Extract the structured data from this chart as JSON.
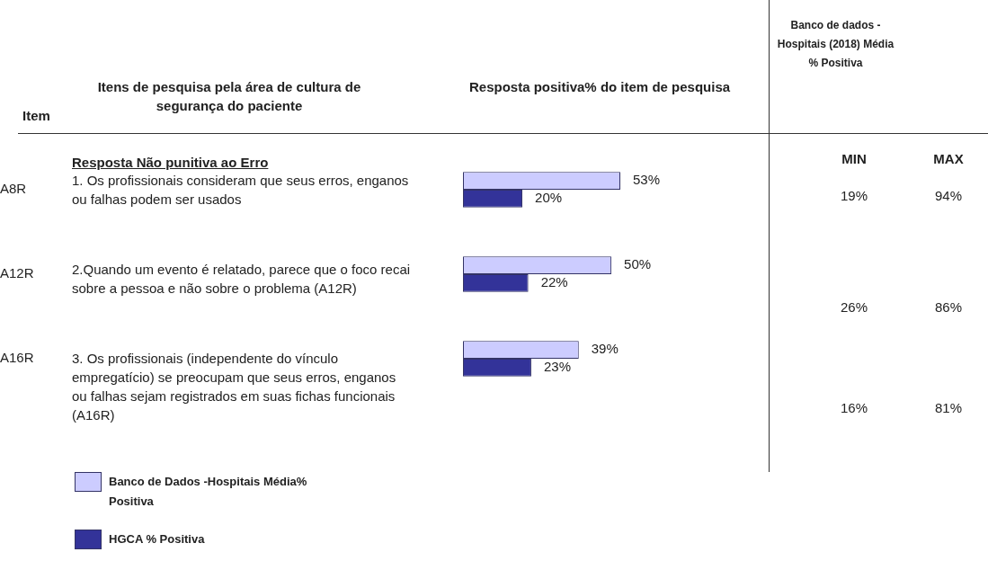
{
  "chart_data": {
    "type": "bar",
    "orientation": "horizontal",
    "categories": [
      "A8R",
      "A12R",
      "A16R"
    ],
    "series": [
      {
        "name": "Banco de Dados -Hospitais Média% Positiva",
        "color": "#ccccff",
        "values": [
          53,
          50,
          39
        ],
        "value_labels": [
          "53%",
          "50%",
          "39%"
        ]
      },
      {
        "name": "HGCA % Positiva",
        "color": "#333399",
        "values": [
          20,
          22,
          23
        ],
        "value_labels": [
          "20%",
          "22%",
          "23%"
        ]
      }
    ],
    "legend": "bottom left",
    "grid": false,
    "tick_labels": "y",
    "annotations": [
      "Item",
      "Itens de pesquisa pela área de cultura de segurança do paciente",
      "Resposta positiva% do item de pesquisa",
      "Banco de dados - Hospitais (2018) Média % Positiva",
      "Resposta Não punitiva ao Erro",
      "MIN",
      "MAX",
      "1. Os profissionais consideram que seus erros, enganos ou falhas podem ser usados",
      "2.Quando um evento é relatado, parece que o foco recai sobre a pessoa e não sobre o problema (A12R)",
      "3.  Os profissionais (independente do vínculo empregatício) se preocupam que seus erros, enganos ou falhas sejam registrados em suas fichas funcionais (A16R)",
      "19%",
      "94%",
      "26%",
      "86%",
      "16%",
      "81%"
    ]
  }
}
